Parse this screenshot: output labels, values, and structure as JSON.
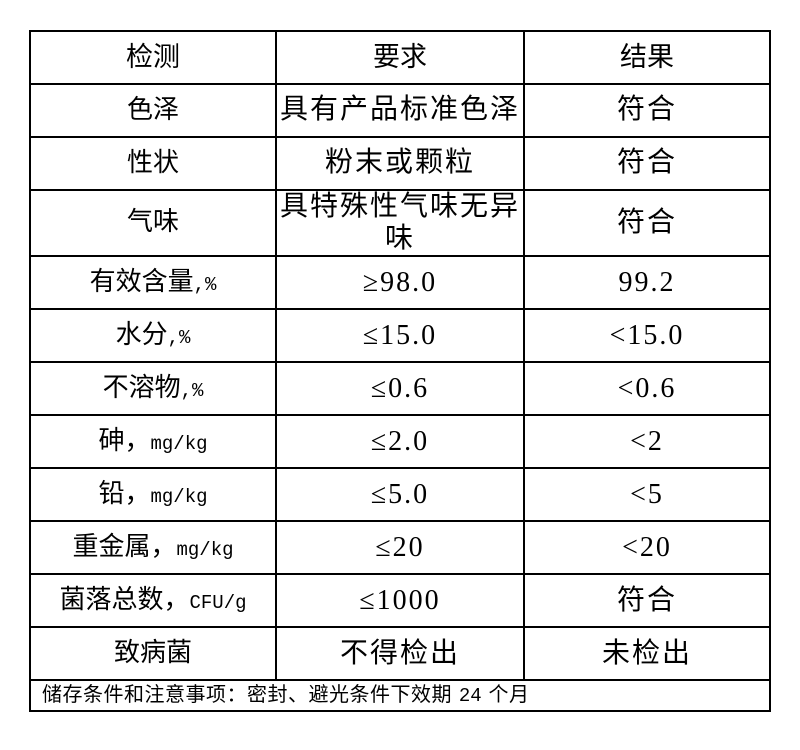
{
  "colors": {
    "background": "#ffffff",
    "border": "#000000",
    "text": "#000000"
  },
  "table": {
    "columns": {
      "test": "检测",
      "requirement": "要求",
      "result": "结果"
    },
    "rows": [
      {
        "item": "色泽",
        "requirement": "具有产品标准色泽",
        "result": "符合"
      },
      {
        "item": "性状",
        "requirement": "粉末或颗粒",
        "result": "符合"
      },
      {
        "item": "气味",
        "requirement": "具特殊性气味无异味",
        "result": "符合"
      },
      {
        "item": "有效含量,%",
        "requirement": "≥98.0",
        "result": "99.2"
      },
      {
        "item": "水分,%",
        "requirement": "≤15.0",
        "result": "<15.0"
      },
      {
        "item": "不溶物,%",
        "requirement": "≤0.6",
        "result": "<0.6"
      },
      {
        "item": "砷，mg/kg",
        "requirement": "≤2.0",
        "result": "<2"
      },
      {
        "item": "铅，mg/kg",
        "requirement": "≤5.0",
        "result": "<5"
      },
      {
        "item": "重金属，mg/kg",
        "requirement": "≤20",
        "result": "<20"
      },
      {
        "item": "菌落总数，CFU/g",
        "requirement": "≤1000",
        "result": "符合"
      },
      {
        "item": "致病菌",
        "requirement": "不得检出",
        "result": "未检出"
      }
    ],
    "footer_note": "储存条件和注意事项：密封、避光条件下效期 24 个月"
  }
}
